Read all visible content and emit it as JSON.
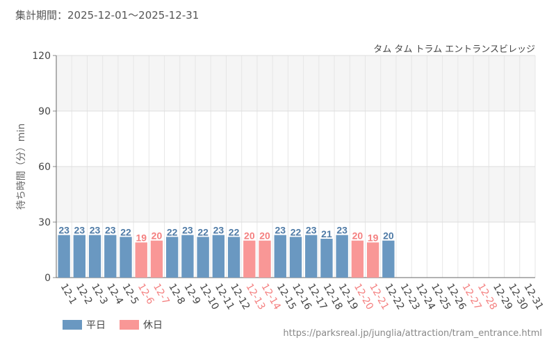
{
  "header": {
    "period": "集計期間：2025-12-01～2025-12-31",
    "attraction": "タム タム トラム エントランスビレッジ"
  },
  "footer": {
    "url": "https://parksreal.jp/junglia/attraction/tram_entrance.html"
  },
  "colors": {
    "weekday": "#6a98c1",
    "holiday": "#f99796",
    "weekday_text": "#4e7aa6",
    "holiday_text": "#f47f7f"
  },
  "chart_data": {
    "type": "bar",
    "ylabel": "待ち時間（分）min",
    "xlabel": "",
    "ylim": [
      0,
      120
    ],
    "yticks": [
      0,
      30,
      60,
      90,
      120
    ],
    "categories": [
      "12-1",
      "12-2",
      "12-3",
      "12-4",
      "12-5",
      "12-6",
      "12-7",
      "12-8",
      "12-9",
      "12-10",
      "12-11",
      "12-12",
      "12-13",
      "12-14",
      "12-15",
      "12-16",
      "12-17",
      "12-18",
      "12-19",
      "12-20",
      "12-21",
      "12-22",
      "12-23",
      "12-24",
      "12-25",
      "12-26",
      "12-27",
      "12-28",
      "12-29",
      "12-30",
      "12-31"
    ],
    "values": [
      23,
      23,
      23,
      23,
      22,
      19,
      20,
      22,
      23,
      22,
      23,
      22,
      20,
      20,
      23,
      22,
      23,
      21,
      23,
      20,
      19,
      20,
      null,
      null,
      null,
      null,
      null,
      null,
      null,
      null,
      null
    ],
    "day_types": [
      "weekday",
      "weekday",
      "weekday",
      "weekday",
      "weekday",
      "holiday",
      "holiday",
      "weekday",
      "weekday",
      "weekday",
      "weekday",
      "weekday",
      "holiday",
      "holiday",
      "weekday",
      "weekday",
      "weekday",
      "weekday",
      "weekday",
      "holiday",
      "holiday",
      "weekday",
      "weekday",
      "weekday",
      "weekday",
      "weekday",
      "holiday",
      "holiday",
      "weekday",
      "weekday",
      "weekday"
    ],
    "legend": [
      {
        "name": "平日",
        "key": "weekday"
      },
      {
        "name": "休日",
        "key": "holiday"
      }
    ],
    "grid": true,
    "legend_position": "bottom-left"
  }
}
